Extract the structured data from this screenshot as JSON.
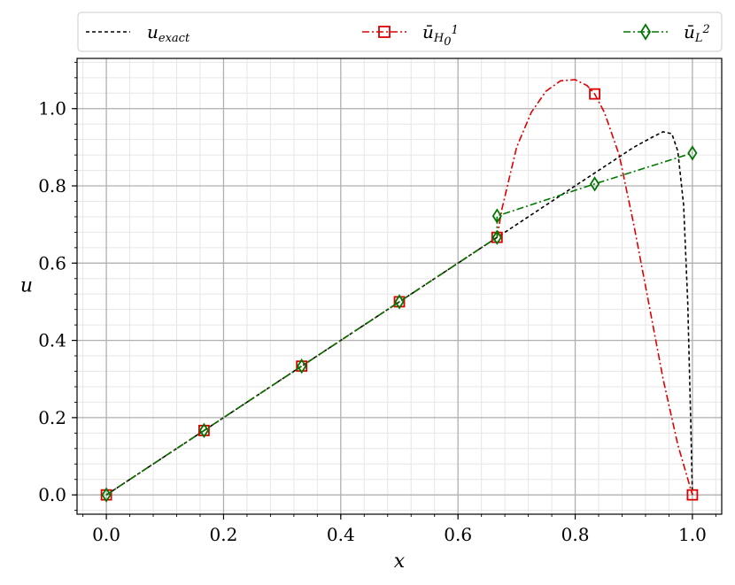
{
  "chart_data": {
    "type": "line",
    "xlabel": "x",
    "ylabel": "u",
    "xlim": [
      -0.05,
      1.05
    ],
    "ylim": [
      -0.05,
      1.13
    ],
    "xticks": [
      0.0,
      0.2,
      0.4,
      0.6,
      0.8,
      1.0
    ],
    "xtick_labels": [
      "0.0",
      "0.2",
      "0.4",
      "0.6",
      "0.8",
      "1.0"
    ],
    "yticks": [
      0.0,
      0.2,
      0.4,
      0.6,
      0.8,
      1.0
    ],
    "ytick_labels": [
      "0.0",
      "0.2",
      "0.4",
      "0.6",
      "0.8",
      "1.0"
    ],
    "grid": true,
    "legend_position": "top, outside plot",
    "series": [
      {
        "name": "u_exact",
        "legend_main": "u",
        "legend_sub": "exact",
        "color": "#000000",
        "linestyle": "dashed",
        "marker": "none",
        "x": [
          0.0,
          0.1,
          0.2,
          0.3,
          0.4,
          0.5,
          0.6,
          0.667,
          0.7,
          0.75,
          0.8,
          0.85,
          0.9,
          0.93,
          0.95,
          0.965,
          0.975,
          0.985,
          0.992,
          0.997,
          1.0
        ],
        "y": [
          0.0,
          0.1,
          0.2,
          0.3,
          0.4,
          0.5,
          0.6,
          0.667,
          0.7,
          0.75,
          0.8,
          0.85,
          0.9,
          0.925,
          0.94,
          0.935,
          0.89,
          0.75,
          0.5,
          0.2,
          0.0
        ]
      },
      {
        "name": "ū_H0^1",
        "legend_main": "ū",
        "legend_sub": "H",
        "legend_subsub": "0",
        "legend_sup": "1",
        "color": "#dd0000",
        "linestyle": "dashdot",
        "marker": "square",
        "x": [
          0.0,
          0.1667,
          0.3333,
          0.5,
          0.6667,
          0.675,
          0.7,
          0.725,
          0.75,
          0.775,
          0.8,
          0.82,
          0.8333,
          0.85,
          0.875,
          0.9,
          0.925,
          0.95,
          0.975,
          1.0
        ],
        "y": [
          0.0,
          0.1667,
          0.3333,
          0.5,
          0.6667,
          0.74,
          0.9,
          0.99,
          1.045,
          1.072,
          1.075,
          1.06,
          1.038,
          0.99,
          0.88,
          0.7,
          0.5,
          0.3,
          0.13,
          0.0
        ],
        "marker_x": [
          0.0,
          0.1667,
          0.3333,
          0.5,
          0.6667,
          0.8333,
          1.0
        ],
        "marker_y": [
          0.0,
          0.1667,
          0.3333,
          0.5,
          0.6667,
          1.038,
          0.0
        ]
      },
      {
        "name": "ū_L^2",
        "legend_main": "ū",
        "legend_sub": "L",
        "legend_sup": "2",
        "color": "#007700",
        "linestyle": "dashdot",
        "marker": "diamond",
        "x": [
          0.0,
          0.1667,
          0.3333,
          0.5,
          0.6667,
          0.6667,
          0.8333,
          1.0
        ],
        "y": [
          0.0,
          0.1667,
          0.3333,
          0.5,
          0.6667,
          0.722,
          0.805,
          0.885
        ],
        "marker_x": [
          0.0,
          0.1667,
          0.3333,
          0.5,
          0.6667,
          0.6667,
          0.8333,
          1.0
        ],
        "marker_y": [
          0.0,
          0.1667,
          0.3333,
          0.5,
          0.6667,
          0.722,
          0.805,
          0.885
        ]
      }
    ]
  }
}
